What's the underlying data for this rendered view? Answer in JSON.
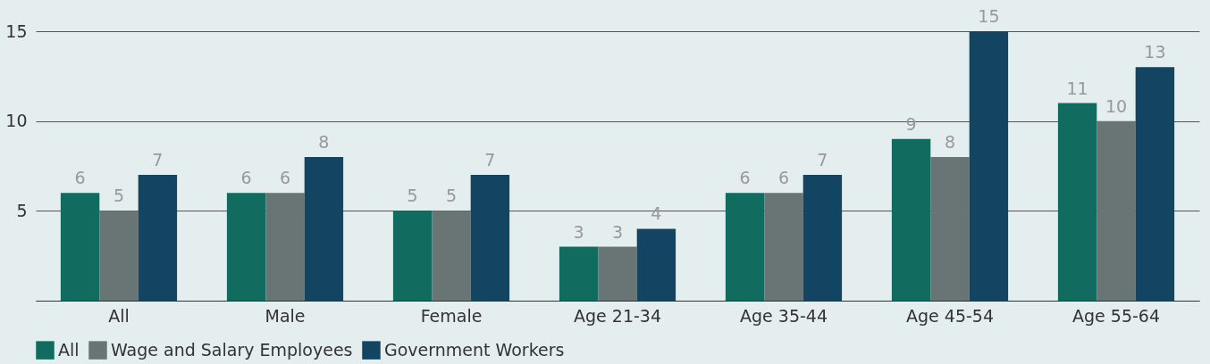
{
  "chart_data": {
    "type": "bar",
    "categories": [
      "All",
      "Male",
      "Female",
      "Age 21-34",
      "Age 35-44",
      "Age 45-54",
      "Age 55-64"
    ],
    "series": [
      {
        "name": "All",
        "color": "#116b5e",
        "values": [
          6,
          6,
          5,
          3,
          6,
          9,
          11
        ]
      },
      {
        "name": "Wage and Salary Employees",
        "color": "#687574",
        "values": [
          5,
          6,
          5,
          3,
          6,
          8,
          10
        ]
      },
      {
        "name": "Government Workers",
        "color": "#134563",
        "values": [
          7,
          8,
          7,
          4,
          7,
          15,
          13
        ]
      }
    ],
    "ylim": [
      0,
      15
    ],
    "yticks": [
      {
        "value": 0,
        "label": null
      },
      5,
      10,
      15
    ],
    "grid": "y",
    "legend": "bottom",
    "data_labels": true
  }
}
